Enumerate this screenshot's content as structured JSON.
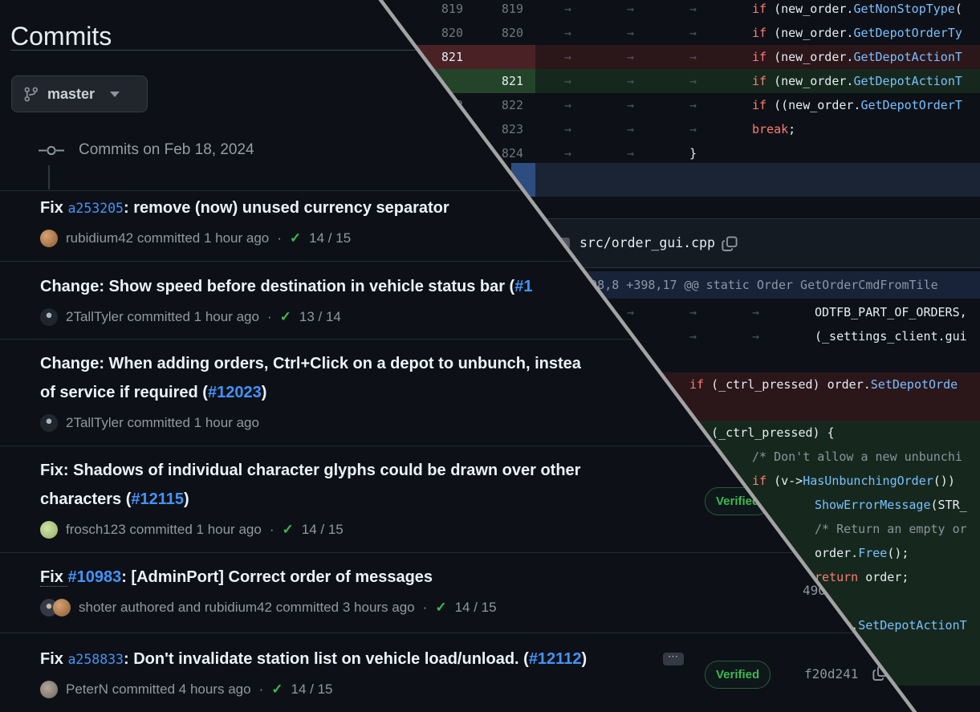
{
  "colors": {
    "background": "#0d1117",
    "link_blue": "#4493f8",
    "success_green": "#3fb950",
    "keyword_red": "#ff7b72",
    "function_blue": "#79c0ff",
    "comment_gray": "#8b949e",
    "diagonal_gray": "#a3a3a3"
  },
  "page": {
    "title": "Commits"
  },
  "branch": {
    "label": "master",
    "icon": "git-branch-icon",
    "caret": "chevron-down-icon"
  },
  "timeline": {
    "date_heading": "Commits on Feb 18, 2024"
  },
  "commits": [
    {
      "prefix": "Fix ",
      "hash_link": "a253205",
      "rest": ": remove (now) unused currency separator",
      "meta": "rubidium42 committed 1 hour ago",
      "sep": "·",
      "check": "✓",
      "checks": "14 / 15"
    },
    {
      "pre": "Change: Show speed before destination in vehicle status bar (",
      "issue": "#1",
      "meta": "2TallTyler committed 1 hour ago",
      "sep": "·",
      "check": "✓",
      "checks": "13 / 14"
    },
    {
      "line1": "Change: When adding orders, Ctrl+Click on a depot to unbunch, instea",
      "line2_pre": "of service if required (",
      "issue": "#12023",
      "line2_post": ")",
      "meta": "2TallTyler committed 1 hour ago"
    },
    {
      "line1": "Fix: Shadows of individual character glyphs could be drawn over other",
      "line2_pre": "characters (",
      "issue": "#12115",
      "line2_post": ")",
      "meta": "frosch123 committed 1 hour ago",
      "sep": "·",
      "check": "✓",
      "checks": "14 / 15",
      "badge": "Verified"
    },
    {
      "prefix": "Fix ",
      "issue": "#10983",
      "rest": ": [AdminPort] Correct order of messages",
      "meta": "shoter authored and rubidium42 committed 3 hours ago",
      "sep": "·",
      "check": "✓",
      "checks": "14 / 15",
      "hash": "490"
    },
    {
      "prefix": "Fix ",
      "hash_link": "a258833",
      "rest": ": Don't invalidate station list on vehicle load/unload. (",
      "issue": "#12112",
      "rest2": ")",
      "more_label": "⋯",
      "meta": "PeterN committed 4 hours ago",
      "sep": "·",
      "check": "✓",
      "checks": "14 / 15",
      "badge": "Verified",
      "hash": "f20d241"
    }
  ],
  "diff": {
    "file_name": "src/order_gui.cpp",
    "hunk_header": "@@ -398,8 +398,17 @@ static Order GetOrderCmdFromTile",
    "top_rows": [
      {
        "old": "819",
        "new": "819",
        "type": "ctx",
        "tabs": 3,
        "segments": [
          [
            "k",
            "if"
          ],
          [
            "p",
            " (new_order."
          ],
          [
            "f",
            "GetNonStopType"
          ],
          [
            "p",
            "("
          ]
        ]
      },
      {
        "old": "820",
        "new": "820",
        "type": "ctx",
        "tabs": 3,
        "segments": [
          [
            "k",
            "if"
          ],
          [
            "p",
            " (new_order."
          ],
          [
            "f",
            "GetDepotOrderTy"
          ]
        ]
      },
      {
        "old": "821",
        "new": "",
        "type": "del",
        "tabs": 3,
        "segments": [
          [
            "k",
            "if"
          ],
          [
            "p",
            " (new_order."
          ],
          [
            "f",
            "GetDepotActionT"
          ]
        ]
      },
      {
        "old": "",
        "new": "821",
        "type": "add",
        "tabs": 3,
        "segments": [
          [
            "k",
            "if"
          ],
          [
            "p",
            " (new_order."
          ],
          [
            "f",
            "GetDepotActionT"
          ]
        ]
      },
      {
        "old": "822",
        "new": "822",
        "type": "ctx",
        "tabs": 3,
        "segments": [
          [
            "k",
            "if"
          ],
          [
            "p",
            " ((new_order."
          ],
          [
            "f",
            "GetDepotOrderT"
          ]
        ]
      },
      {
        "old": "823",
        "new": "823",
        "type": "ctx",
        "tabs": 3,
        "segments": [
          [
            "k",
            "break"
          ],
          [
            "p",
            ";"
          ]
        ]
      },
      {
        "old": "824",
        "new": "824",
        "type": "ctx",
        "tabs": 2,
        "segments": [
          [
            "p",
            "}"
          ]
        ]
      }
    ],
    "bottom_rows": [
      {
        "type": "ctx",
        "tabs": 4,
        "segments": [
          [
            "p",
            "ODTFB_PART_OF_ORDERS,"
          ]
        ]
      },
      {
        "type": "ctx",
        "tabs": 4,
        "segments": [
          [
            "p",
            "(_settings_client.gui"
          ]
        ]
      },
      {
        "type": "ctx",
        "tabs": 0,
        "segments": []
      },
      {
        "type": "del",
        "tabs": 2,
        "segments": [
          [
            "k",
            "if"
          ],
          [
            "p",
            " (_ctrl_pressed) order."
          ],
          [
            "f",
            "SetDepotOrde"
          ]
        ]
      },
      {
        "type": "del",
        "tabs": 0,
        "segments": []
      },
      {
        "type": "add",
        "tabs": 2,
        "segments": [
          [
            "k",
            "if"
          ],
          [
            "p",
            " (_ctrl_pressed) {"
          ]
        ]
      },
      {
        "type": "add",
        "tabs": 3,
        "segments": [
          [
            "c",
            "/* Don't allow a new unbunchi"
          ]
        ]
      },
      {
        "type": "add",
        "tabs": 3,
        "segments": [
          [
            "k",
            "if"
          ],
          [
            "p",
            " (v->"
          ],
          [
            "f",
            "HasUnbunchingOrder"
          ],
          [
            "p",
            "())"
          ]
        ]
      },
      {
        "type": "add",
        "tabs": 4,
        "segments": [
          [
            "f",
            "ShowErrorMessage"
          ],
          [
            "p",
            "(STR_"
          ]
        ]
      },
      {
        "type": "add",
        "tabs": 4,
        "segments": [
          [
            "c",
            "/* Return an empty or"
          ]
        ]
      },
      {
        "type": "add",
        "tabs": 4,
        "segments": [
          [
            "p",
            "order."
          ],
          [
            "f",
            "Free"
          ],
          [
            "p",
            "();"
          ]
        ]
      },
      {
        "type": "add",
        "tabs": 4,
        "segments": [
          [
            "k",
            "return"
          ],
          [
            "p",
            " order;"
          ]
        ]
      },
      {
        "type": "add",
        "tabs": 0,
        "segments": []
      },
      {
        "type": "add",
        "tabs": 4,
        "segments": [
          [
            "p",
            "order."
          ],
          [
            "f",
            "SetDepotActionT"
          ]
        ]
      },
      {
        "type": "add",
        "tabs": 0,
        "segments": []
      },
      {
        "type": "add",
        "tabs": 0,
        "segments": []
      }
    ]
  }
}
